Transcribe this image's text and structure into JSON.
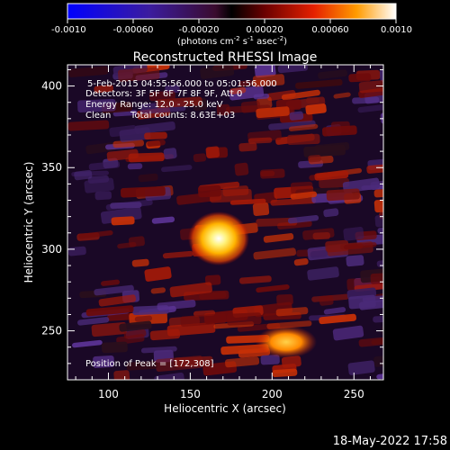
{
  "colorbar": {
    "ticks": [
      "-0.0010",
      "-0.00060",
      "-0.00020",
      "0.00020",
      "0.00060",
      "0.0010"
    ],
    "unit_label": "(photons cm",
    "unit_exp1": "-2",
    "unit_mid": " s",
    "unit_exp2": "-1",
    "unit_mid2": " asec",
    "unit_exp3": "-2",
    "unit_end": ")"
  },
  "title": "Reconstructed RHESSI Image",
  "annotations": {
    "time_range": "5-Feb-2015 04:55:56.000 to 05:01:56.000",
    "detectors": "Detectors: 3F 5F 6F 7F 8F 9F, Att 0",
    "energy": "Energy Range: 12.0 - 25.0 keV",
    "clean_label": "Clean",
    "counts": "Total counts: 8.63E+03",
    "peak": "Position of Peak = [172,308]"
  },
  "axes": {
    "xlabel": "Heliocentric X (arcsec)",
    "ylabel": "Heliocentric Y (arcsec)",
    "xticks": [
      "100",
      "150",
      "200",
      "250"
    ],
    "yticks": [
      "250",
      "300",
      "350",
      "400"
    ],
    "xlim": [
      75,
      268
    ],
    "ylim": [
      220,
      413
    ]
  },
  "footer": {
    "timestamp": "18-May-2022 17:58"
  }
}
